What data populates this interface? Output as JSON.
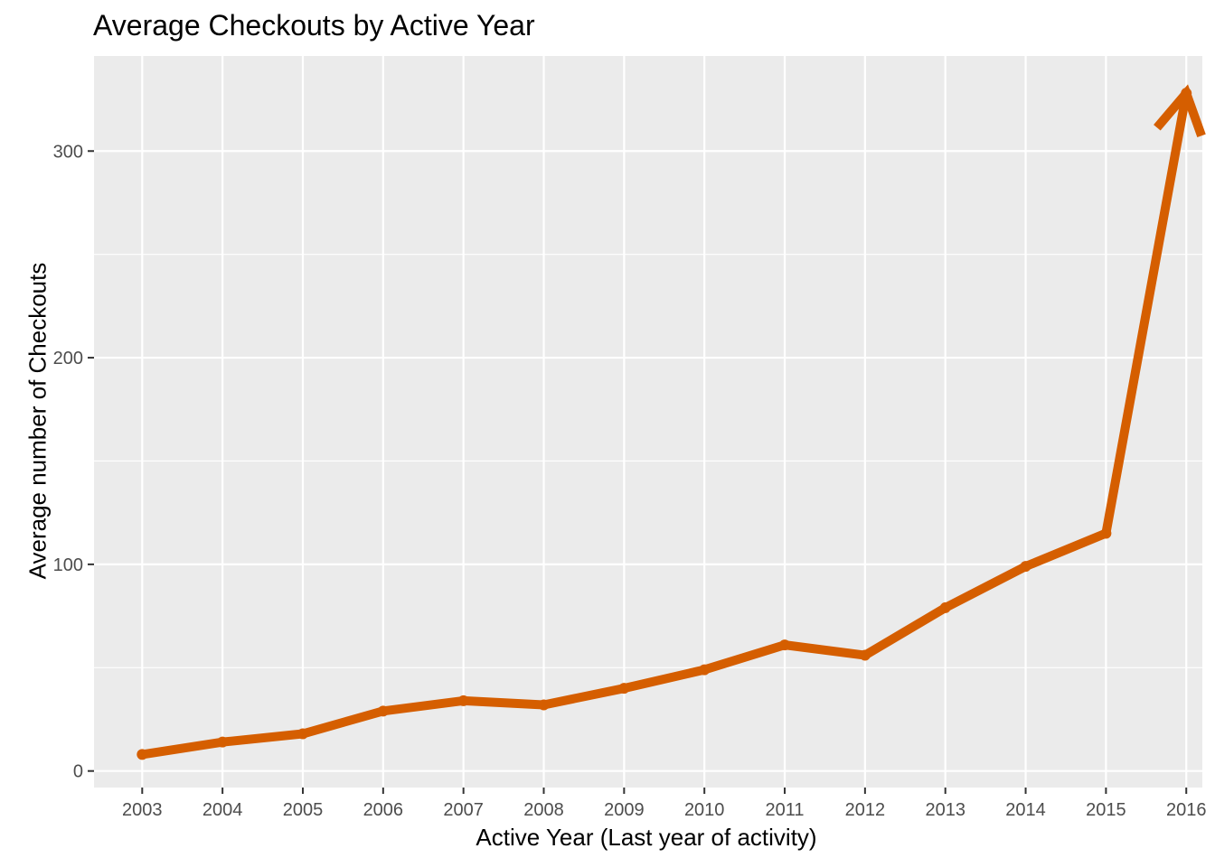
{
  "chart_data": {
    "type": "line",
    "title": "Average Checkouts by Active Year",
    "xlabel": "Active Year (Last year of activity)",
    "ylabel": "Average number of Checkouts",
    "categories": [
      "2003",
      "2004",
      "2005",
      "2006",
      "2007",
      "2008",
      "2009",
      "2010",
      "2011",
      "2012",
      "2013",
      "2014",
      "2015",
      "2016"
    ],
    "values": [
      8,
      14,
      18,
      29,
      34,
      32,
      40,
      49,
      61,
      56,
      79,
      99,
      115,
      328
    ],
    "ylim": [
      -8,
      346
    ],
    "yticks": [
      0,
      100,
      200,
      300
    ],
    "ytick_labels": [
      "0",
      "100",
      "200",
      "300"
    ],
    "grid": true,
    "line_color": "#D55E00",
    "panel_color": "#EBEBEB",
    "grid_color": "#FFFFFF",
    "end_arrow": true
  }
}
